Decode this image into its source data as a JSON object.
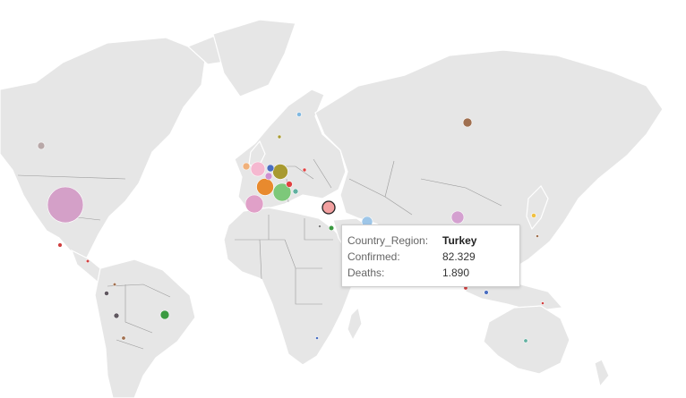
{
  "map": {
    "colors": {
      "land": "#e6e6e6",
      "borders": "#9a9a9a",
      "background": "#ffffff"
    },
    "bubbles": [
      {
        "region": "United States",
        "color": "#d4a0c8",
        "size": "xl"
      },
      {
        "region": "Spain",
        "color": "#e88a2e",
        "size": "m"
      },
      {
        "region": "Italy",
        "color": "#7dc87a",
        "size": "m"
      },
      {
        "region": "France",
        "color": "#e0a0c8",
        "size": "m"
      },
      {
        "region": "United Kingdom",
        "color": "#f5b8d0",
        "size": "m"
      },
      {
        "region": "Germany",
        "color": "#a89a30",
        "size": "m"
      },
      {
        "region": "Iran",
        "color": "#d4a0d0",
        "size": "s"
      },
      {
        "region": "Turkey",
        "color": "#f2a0a0",
        "size": "s",
        "selected": true
      },
      {
        "region": "Russia",
        "color": "#a07050",
        "size": "xs"
      },
      {
        "region": "Brazil",
        "color": "#3a9a40",
        "size": "xs"
      },
      {
        "region": "Canada",
        "color": "#b8a8a8",
        "size": "xs"
      },
      {
        "region": "Saudi Arabia",
        "color": "#9ec6e8",
        "size": "s"
      }
    ]
  },
  "tooltip": {
    "rows": [
      {
        "label": "Country_Region:",
        "value": "Turkey"
      },
      {
        "label": "Confirmed:",
        "value": "82.329"
      },
      {
        "label": "Deaths:",
        "value": "1.890"
      }
    ]
  }
}
